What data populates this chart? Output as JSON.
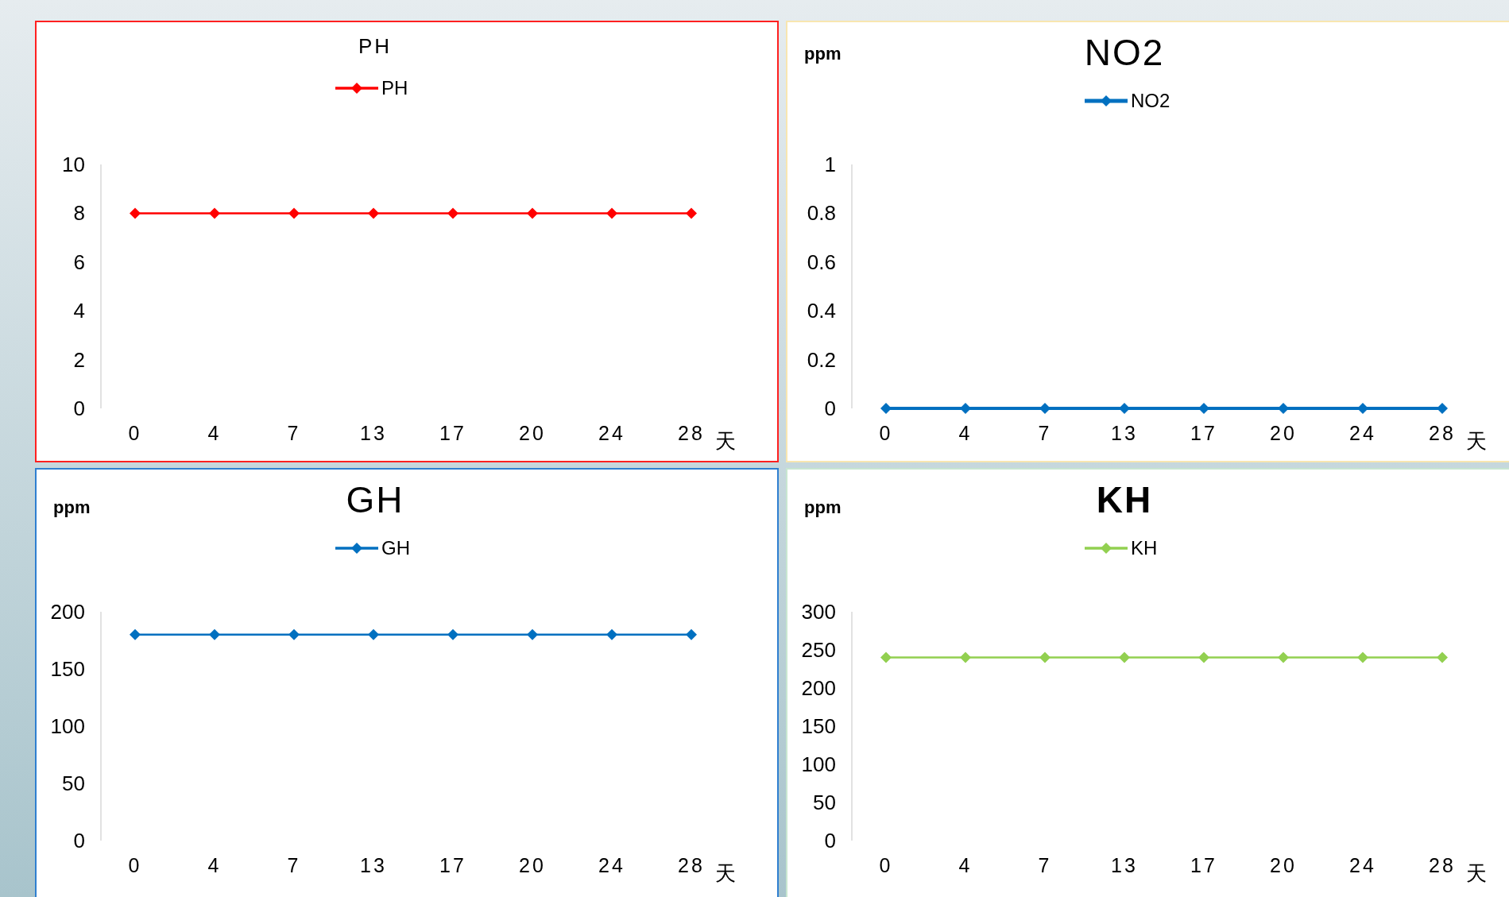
{
  "chart_data": [
    {
      "type": "line",
      "title": "PH",
      "xlabel": "天",
      "categories": [
        "0",
        "4",
        "7",
        "13",
        "17",
        "20",
        "24",
        "28"
      ],
      "series": [
        {
          "name": "PH",
          "color": "#ff0000",
          "values": [
            8,
            8,
            8,
            8,
            8,
            8,
            8,
            8
          ]
        }
      ],
      "ylim": [
        0,
        10
      ],
      "yticks": [
        0,
        2,
        4,
        6,
        8,
        10
      ],
      "legend": "top",
      "marker": "diamond"
    },
    {
      "type": "line",
      "title": "NO2",
      "ylabel": "ppm",
      "xlabel": "天",
      "categories": [
        "0",
        "4",
        "7",
        "13",
        "17",
        "20",
        "24",
        "28"
      ],
      "series": [
        {
          "name": "NO2",
          "color": "#0070c0",
          "values": [
            0,
            0,
            0,
            0,
            0,
            0,
            0,
            0
          ]
        }
      ],
      "ylim": [
        0,
        1
      ],
      "yticks": [
        0,
        0.2,
        0.4,
        0.6,
        0.8,
        1
      ],
      "legend": "top",
      "marker": "diamond"
    },
    {
      "type": "line",
      "title": "GH",
      "ylabel": "ppm",
      "xlabel": "天",
      "categories": [
        "0",
        "4",
        "7",
        "13",
        "17",
        "20",
        "24",
        "28"
      ],
      "series": [
        {
          "name": "GH",
          "color": "#0070c0",
          "values": [
            180,
            180,
            180,
            180,
            180,
            180,
            180,
            180
          ]
        }
      ],
      "ylim": [
        0,
        200
      ],
      "yticks": [
        0,
        50,
        100,
        150,
        200
      ],
      "legend": "top",
      "marker": "diamond"
    },
    {
      "type": "line",
      "title": "KH",
      "ylabel": "ppm",
      "xlabel": "天",
      "categories": [
        "0",
        "4",
        "7",
        "13",
        "17",
        "20",
        "24",
        "28"
      ],
      "series": [
        {
          "name": "KH",
          "color": "#92d050",
          "values": [
            240,
            240,
            240,
            240,
            240,
            240,
            240,
            240
          ]
        }
      ],
      "ylim": [
        0,
        300
      ],
      "yticks": [
        0,
        50,
        100,
        150,
        200,
        250,
        300
      ],
      "legend": "top",
      "marker": "diamond"
    }
  ]
}
